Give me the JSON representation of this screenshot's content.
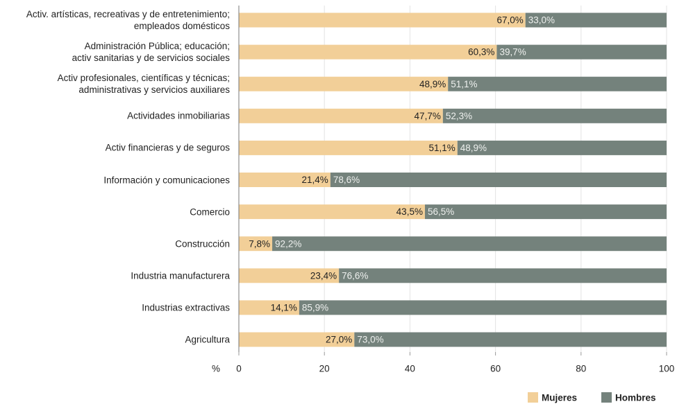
{
  "chart_data": {
    "type": "stacked_bar_horizontal",
    "categories": [
      "Activ. artísticas, recreativas y de entretenimiento;\nempleados domésticos",
      "Administración Pública; educación;\nactiv sanitarias y de servicios sociales",
      "Activ profesionales, científicas y técnicas;\nadministrativas y servicios auxiliares",
      "Actividades inmobiliarias",
      "Activ financieras y de seguros",
      "Información y comunicaciones",
      "Comercio",
      "Construcción",
      "Industria manufacturera",
      "Industrias extractivas",
      "Agricultura"
    ],
    "series": [
      {
        "name": "Mujeres",
        "color": "#f2cf98",
        "values": [
          67.0,
          60.3,
          48.9,
          47.7,
          51.1,
          21.4,
          43.5,
          7.8,
          23.4,
          14.1,
          27.0
        ],
        "value_labels": [
          "67,0%",
          "60,3%",
          "48,9%",
          "47,7%",
          "51,1%",
          "21,4%",
          "43,5%",
          "7,8%",
          "23,4%",
          "14,1%",
          "27,0%"
        ]
      },
      {
        "name": "Hombres",
        "color": "#74827c",
        "values": [
          33.0,
          39.7,
          51.1,
          52.3,
          48.9,
          78.6,
          56.5,
          92.2,
          76.6,
          85.9,
          73.0
        ],
        "value_labels": [
          "33,0%",
          "39,7%",
          "51,1%",
          "52,3%",
          "48,9%",
          "78,6%",
          "56,5%",
          "92,2%",
          "76,6%",
          "85,9%",
          "73,0%"
        ]
      }
    ],
    "x_label": "%",
    "xlim": [
      0,
      100
    ],
    "xticks": [
      0,
      20,
      40,
      60,
      80,
      100
    ],
    "grid": true,
    "legend": "bottom-right"
  }
}
